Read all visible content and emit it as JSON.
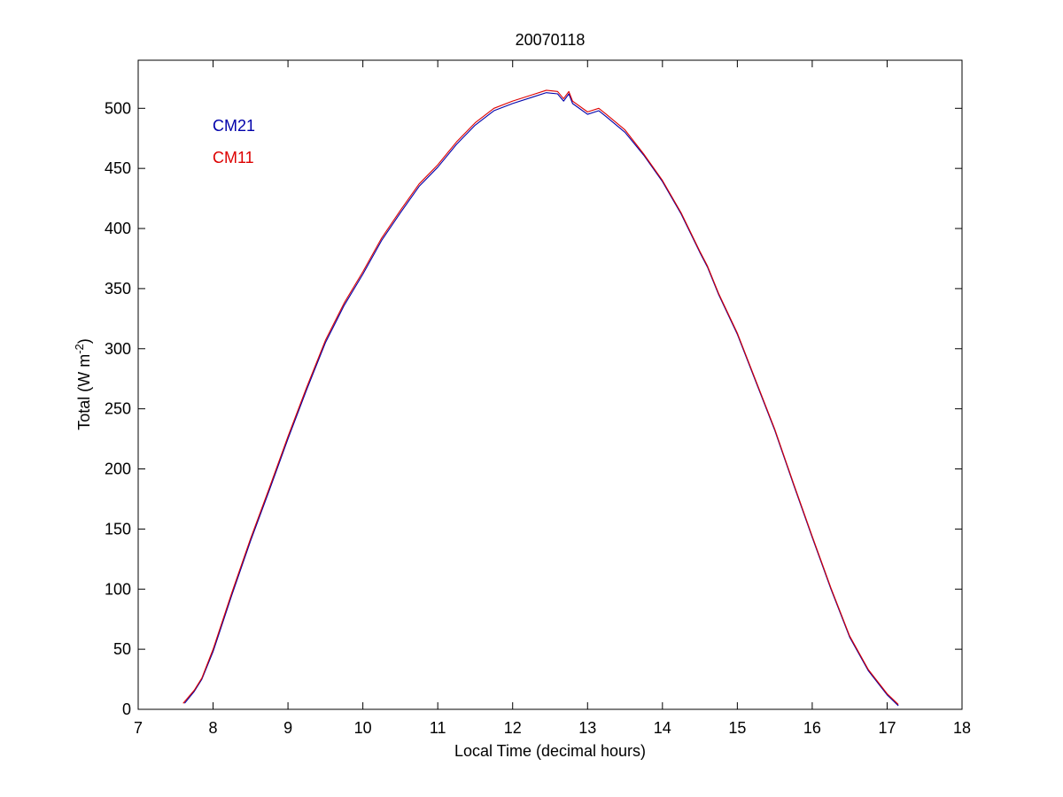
{
  "chart_data": {
    "type": "line",
    "title": "20070118",
    "xlabel": "Local Time (decimal hours)",
    "ylabel_main": "Total (W m",
    "ylabel_exp": "-2",
    "ylabel_close": ")",
    "xlim": [
      7,
      18
    ],
    "ylim": [
      0,
      540
    ],
    "x_ticks": [
      7,
      8,
      9,
      10,
      11,
      12,
      13,
      14,
      15,
      16,
      17,
      18
    ],
    "y_ticks": [
      0,
      50,
      100,
      150,
      200,
      250,
      300,
      350,
      400,
      450,
      500
    ],
    "grid": false,
    "legend_position": "top-left",
    "series": [
      {
        "name": "CM21",
        "color": "#0000aa",
        "points": [
          [
            7.62,
            5
          ],
          [
            7.75,
            15
          ],
          [
            7.85,
            25
          ],
          [
            8.0,
            48
          ],
          [
            8.25,
            95
          ],
          [
            8.5,
            140
          ],
          [
            8.75,
            182
          ],
          [
            9.0,
            225
          ],
          [
            9.25,
            266
          ],
          [
            9.5,
            305
          ],
          [
            9.75,
            336
          ],
          [
            10.0,
            362
          ],
          [
            10.25,
            390
          ],
          [
            10.5,
            413
          ],
          [
            10.75,
            435
          ],
          [
            11.0,
            451
          ],
          [
            11.25,
            470
          ],
          [
            11.5,
            486
          ],
          [
            11.75,
            498
          ],
          [
            12.0,
            504
          ],
          [
            12.25,
            509
          ],
          [
            12.45,
            513
          ],
          [
            12.6,
            512
          ],
          [
            12.68,
            506
          ],
          [
            12.75,
            512
          ],
          [
            12.8,
            504
          ],
          [
            13.0,
            495
          ],
          [
            13.15,
            498
          ],
          [
            13.25,
            493
          ],
          [
            13.5,
            480
          ],
          [
            13.75,
            461
          ],
          [
            14.0,
            439
          ],
          [
            14.25,
            412
          ],
          [
            14.5,
            380
          ],
          [
            14.6,
            368
          ],
          [
            14.75,
            345
          ],
          [
            15.0,
            312
          ],
          [
            15.25,
            272
          ],
          [
            15.5,
            232
          ],
          [
            15.75,
            187
          ],
          [
            16.0,
            143
          ],
          [
            16.25,
            100
          ],
          [
            16.5,
            60
          ],
          [
            16.75,
            32
          ],
          [
            17.0,
            12
          ],
          [
            17.15,
            3
          ]
        ]
      },
      {
        "name": "CM11",
        "color": "#dd0000",
        "points": [
          [
            7.6,
            5
          ],
          [
            7.75,
            16
          ],
          [
            7.85,
            26
          ],
          [
            8.0,
            50
          ],
          [
            8.25,
            97
          ],
          [
            8.5,
            142
          ],
          [
            8.75,
            184
          ],
          [
            9.0,
            227
          ],
          [
            9.25,
            268
          ],
          [
            9.5,
            307
          ],
          [
            9.75,
            338
          ],
          [
            10.0,
            364
          ],
          [
            10.25,
            392
          ],
          [
            10.5,
            415
          ],
          [
            10.75,
            437
          ],
          [
            11.0,
            453
          ],
          [
            11.25,
            472
          ],
          [
            11.5,
            488
          ],
          [
            11.75,
            500
          ],
          [
            12.0,
            506
          ],
          [
            12.25,
            511
          ],
          [
            12.45,
            515
          ],
          [
            12.6,
            514
          ],
          [
            12.68,
            508
          ],
          [
            12.75,
            514
          ],
          [
            12.8,
            506
          ],
          [
            13.0,
            497
          ],
          [
            13.15,
            500
          ],
          [
            13.25,
            495
          ],
          [
            13.5,
            482
          ],
          [
            13.75,
            462
          ],
          [
            14.0,
            440
          ],
          [
            14.25,
            413
          ],
          [
            14.5,
            381
          ],
          [
            14.6,
            369
          ],
          [
            14.75,
            346
          ],
          [
            15.0,
            313
          ],
          [
            15.25,
            273
          ],
          [
            15.5,
            233
          ],
          [
            15.75,
            188
          ],
          [
            16.0,
            144
          ],
          [
            16.25,
            101
          ],
          [
            16.5,
            61
          ],
          [
            16.75,
            33
          ],
          [
            17.0,
            13
          ],
          [
            17.15,
            4
          ]
        ]
      }
    ]
  }
}
